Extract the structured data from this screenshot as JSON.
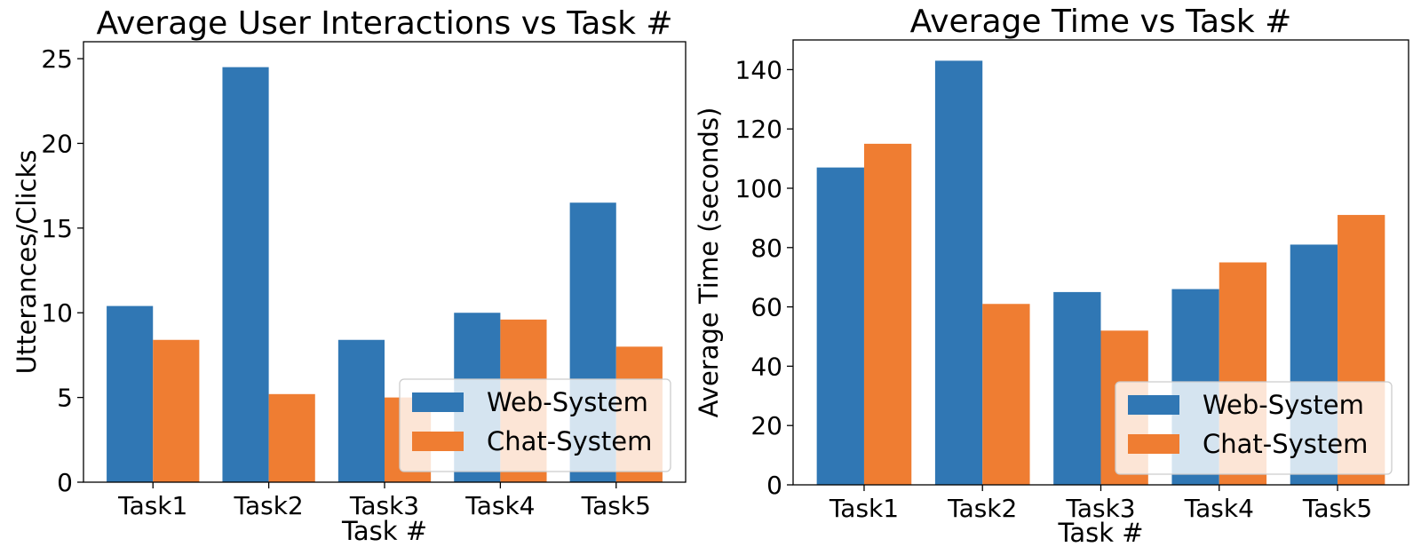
{
  "chart_data": [
    {
      "type": "bar",
      "title": "Average User Interactions vs Task #",
      "xlabel": "Task #",
      "ylabel": "Utterances/Clicks",
      "categories": [
        "Task1",
        "Task2",
        "Task3",
        "Task4",
        "Task5"
      ],
      "series": [
        {
          "name": "Web-System",
          "color": "#3077b4",
          "values": [
            10.4,
            24.5,
            8.4,
            10.0,
            16.5
          ]
        },
        {
          "name": "Chat-System",
          "color": "#ef7d32",
          "values": [
            8.4,
            5.2,
            5.0,
            9.6,
            8.0
          ]
        }
      ],
      "ylim": [
        0,
        26
      ],
      "yticks": [
        0,
        5,
        10,
        15,
        20,
        25
      ],
      "grid": false,
      "legend": "lower right"
    },
    {
      "type": "bar",
      "title": "Average Time vs Task #",
      "xlabel": "Task #",
      "ylabel": "Average Time (seconds)",
      "categories": [
        "Task1",
        "Task2",
        "Task3",
        "Task4",
        "Task5"
      ],
      "series": [
        {
          "name": "Web-System",
          "color": "#3077b4",
          "values": [
            107,
            143,
            65,
            66,
            81
          ]
        },
        {
          "name": "Chat-System",
          "color": "#ef7d32",
          "values": [
            115,
            61,
            52,
            75,
            91
          ]
        }
      ],
      "ylim": [
        0,
        150
      ],
      "yticks": [
        0,
        20,
        40,
        60,
        80,
        100,
        120,
        140
      ],
      "grid": false,
      "legend": "lower right"
    }
  ]
}
